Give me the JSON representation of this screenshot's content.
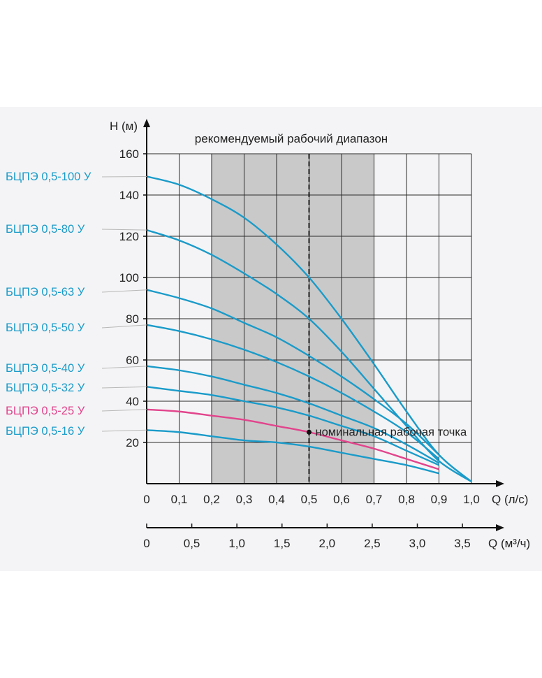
{
  "chart_data": {
    "type": "line",
    "title": "рекомендуемый рабочий диапазон",
    "ylabel": "H (м)",
    "xlabel": "Q (л/с)",
    "x2label": "Q (м³/ч)",
    "xlim": [
      0,
      1.0
    ],
    "ylim": [
      0,
      160
    ],
    "recommended_range": [
      0.2,
      0.7
    ],
    "nominal_flow": 0.5,
    "x_ticks": [
      0,
      0.1,
      0.2,
      0.3,
      0.4,
      0.5,
      0.6,
      0.7,
      0.8,
      0.9,
      1.0
    ],
    "x_tick_labels": [
      "0",
      "0,1",
      "0,2",
      "0,3",
      "0,4",
      "0,5",
      "0,6",
      "0,7",
      "0,8",
      "0,9",
      "1,0"
    ],
    "y_ticks": [
      20,
      40,
      60,
      80,
      100,
      120,
      140,
      160
    ],
    "y_tick_labels": [
      "20",
      "40",
      "60",
      "80",
      "100",
      "120",
      "140",
      "160"
    ],
    "x2_ticks": [
      0,
      0.5,
      1.0,
      1.5,
      2.0,
      2.5,
      3.0,
      3.5
    ],
    "x2_tick_labels": [
      "0",
      "0,5",
      "1,0",
      "1,5",
      "2,0",
      "2,5",
      "3,0",
      "3,5"
    ],
    "x2_max": 3.6,
    "nominal_point": {
      "x": 0.5,
      "y": 25,
      "label": "номинальная рабочая точка"
    },
    "series": [
      {
        "name": "БЦПЭ 0,5-100 У",
        "color": "#1a9bc9",
        "x": [
          0,
          0.1,
          0.2,
          0.3,
          0.4,
          0.5,
          0.6,
          0.7,
          0.8,
          0.9,
          1.0
        ],
        "y": [
          149,
          145,
          138,
          129,
          116,
          100,
          80,
          58,
          35,
          14,
          1
        ]
      },
      {
        "name": "БЦПЭ 0,5-80 У",
        "color": "#1a9bc9",
        "x": [
          0,
          0.1,
          0.2,
          0.3,
          0.4,
          0.5,
          0.6,
          0.7,
          0.8,
          0.9,
          1.0
        ],
        "y": [
          123,
          118,
          111,
          102,
          92,
          80,
          64,
          46,
          28,
          11,
          1
        ]
      },
      {
        "name": "БЦПЭ 0,5-63 У",
        "color": "#1a9bc9",
        "x": [
          0,
          0.1,
          0.2,
          0.3,
          0.4,
          0.5,
          0.6,
          0.7,
          0.8,
          0.9
        ],
        "y": [
          94,
          90,
          85,
          78,
          71,
          62,
          52,
          41,
          29,
          14
        ]
      },
      {
        "name": "БЦПЭ 0,5-50 У",
        "color": "#1a9bc9",
        "x": [
          0,
          0.1,
          0.2,
          0.3,
          0.4,
          0.5,
          0.6,
          0.7,
          0.8,
          0.9
        ],
        "y": [
          77,
          74,
          70,
          65,
          59,
          52,
          44,
          35,
          25,
          12
        ]
      },
      {
        "name": "БЦПЭ 0,5-40 У",
        "color": "#1a9bc9",
        "x": [
          0,
          0.1,
          0.2,
          0.3,
          0.4,
          0.5,
          0.6,
          0.7,
          0.8,
          0.9
        ],
        "y": [
          57,
          55,
          52,
          48,
          44,
          39,
          33,
          27,
          19,
          10
        ]
      },
      {
        "name": "БЦПЭ 0,5-32 У",
        "color": "#1a9bc9",
        "x": [
          0,
          0.1,
          0.2,
          0.3,
          0.4,
          0.5,
          0.6,
          0.7,
          0.8,
          0.9
        ],
        "y": [
          47,
          45,
          43,
          40,
          37,
          33,
          28,
          23,
          16,
          9
        ]
      },
      {
        "name": "БЦПЭ 0,5-25 У",
        "color": "#e2448c",
        "x": [
          0,
          0.1,
          0.2,
          0.3,
          0.4,
          0.5,
          0.6,
          0.7,
          0.8,
          0.9
        ],
        "y": [
          36,
          35,
          33,
          31,
          28,
          25,
          21,
          17,
          12,
          7
        ]
      },
      {
        "name": "БЦПЭ 0,5-16 У",
        "color": "#1a9bc9",
        "x": [
          0,
          0.1,
          0.2,
          0.3,
          0.4,
          0.5,
          0.6,
          0.7,
          0.8,
          0.9
        ],
        "y": [
          26,
          25,
          23,
          21,
          20,
          18,
          15,
          12,
          9,
          5
        ]
      }
    ]
  }
}
